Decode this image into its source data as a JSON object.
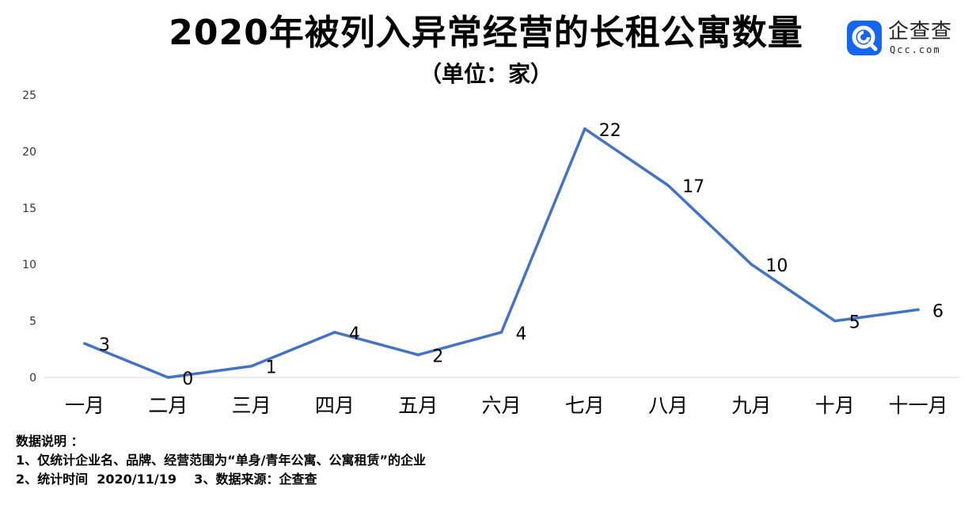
{
  "header": {
    "title": "2020年被列入异常经营的长租公寓数量",
    "subtitle": "（单位：家）"
  },
  "logo": {
    "name": "企查查",
    "sub": "Qcc.com",
    "icon": "qcc-logo-icon",
    "color": "#1565f0"
  },
  "chart_data": {
    "type": "line",
    "title": "2020年被列入异常经营的长租公寓数量",
    "subtitle": "（单位：家）",
    "categories": [
      "一月",
      "二月",
      "三月",
      "四月",
      "五月",
      "六月",
      "七月",
      "八月",
      "九月",
      "十月",
      "十一月"
    ],
    "series": [
      {
        "values": [
          3,
          0,
          1,
          4,
          2,
          4,
          22,
          17,
          10,
          5,
          6
        ],
        "color": "#4472c4"
      }
    ],
    "ylim": [
      0,
      25
    ],
    "yticks": [
      0,
      5,
      10,
      15,
      20,
      25
    ],
    "grid": false,
    "data_labels": true,
    "xlabel": "",
    "ylabel": ""
  },
  "notes": {
    "heading": "数据说明 ：",
    "line1": "1、仅统计企业名、品牌、经营范围为“单身/青年公寓、公寓租赁”的企业",
    "line2": "2、统计时间  2020/11/19    3、数据来源：企查查"
  }
}
